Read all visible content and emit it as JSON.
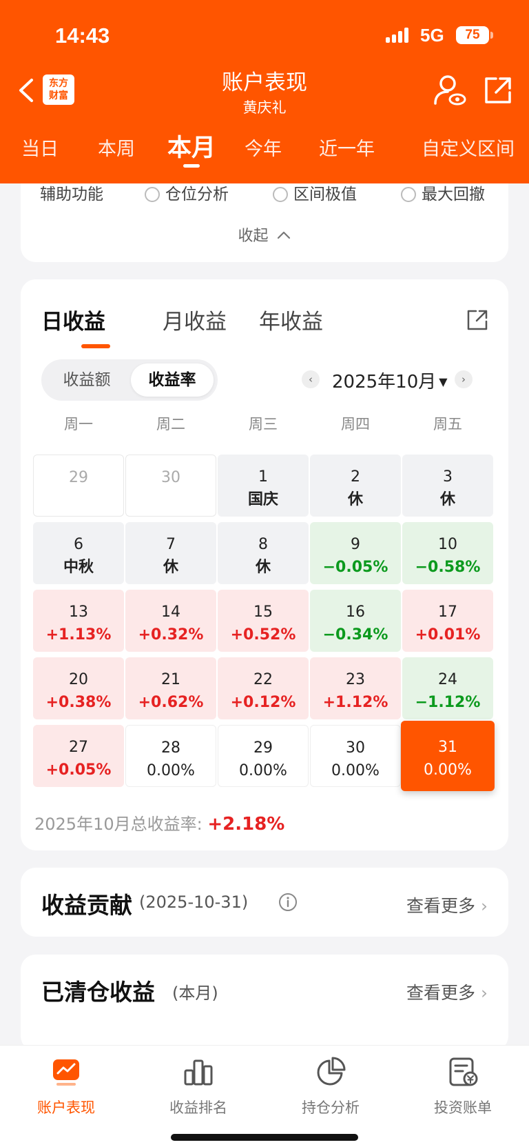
{
  "status": {
    "time": "14:43",
    "network": "5G",
    "battery": "75"
  },
  "header": {
    "logo_line1": "东方",
    "logo_line2": "财富",
    "title": "账户表现",
    "subtitle": "黄庆礼",
    "tabs": [
      "当日",
      "本周",
      "本月",
      "今年",
      "近一年",
      "自定义区间"
    ],
    "active_tab": "本月"
  },
  "assist": {
    "label": "辅助功能",
    "options": [
      "仓位分析",
      "区间极值",
      "最大回撤"
    ],
    "collapse_label": "收起"
  },
  "returns": {
    "tabs": [
      "日收益",
      "月收益",
      "年收益"
    ],
    "active_tab": "日收益",
    "toggle": [
      "收益额",
      "收益率"
    ],
    "toggle_active": "收益率",
    "month": "2025年10月",
    "weekdays": [
      "周一",
      "周二",
      "周三",
      "周四",
      "周五"
    ],
    "weeks": [
      [
        {
          "day": "29",
          "value": "",
          "type": "empty"
        },
        {
          "day": "30",
          "value": "",
          "type": "empty"
        },
        {
          "day": "1",
          "value": "国庆",
          "type": "holiday"
        },
        {
          "day": "2",
          "value": "休",
          "type": "holiday"
        },
        {
          "day": "3",
          "value": "休",
          "type": "holiday"
        }
      ],
      [
        {
          "day": "6",
          "value": "中秋",
          "type": "holiday"
        },
        {
          "day": "7",
          "value": "休",
          "type": "holiday"
        },
        {
          "day": "8",
          "value": "休",
          "type": "holiday"
        },
        {
          "day": "9",
          "value": "−0.05%",
          "type": "green"
        },
        {
          "day": "10",
          "value": "−0.58%",
          "type": "green"
        }
      ],
      [
        {
          "day": "13",
          "value": "+1.13%",
          "type": "red"
        },
        {
          "day": "14",
          "value": "+0.32%",
          "type": "red"
        },
        {
          "day": "15",
          "value": "+0.52%",
          "type": "red"
        },
        {
          "day": "16",
          "value": "−0.34%",
          "type": "green"
        },
        {
          "day": "17",
          "value": "+0.01%",
          "type": "red"
        }
      ],
      [
        {
          "day": "20",
          "value": "+0.38%",
          "type": "red"
        },
        {
          "day": "21",
          "value": "+0.62%",
          "type": "red"
        },
        {
          "day": "22",
          "value": "+0.12%",
          "type": "red"
        },
        {
          "day": "23",
          "value": "+1.12%",
          "type": "red"
        },
        {
          "day": "24",
          "value": "−1.12%",
          "type": "green"
        }
      ],
      [
        {
          "day": "27",
          "value": "+0.05%",
          "type": "red"
        },
        {
          "day": "28",
          "value": "0.00%",
          "type": "zero"
        },
        {
          "day": "29",
          "value": "0.00%",
          "type": "zero"
        },
        {
          "day": "30",
          "value": "0.00%",
          "type": "zero"
        },
        {
          "day": "31",
          "value": "0.00%",
          "type": "selected"
        }
      ]
    ],
    "total_label": "2025年10月总收益率:",
    "total_value": "+2.18%"
  },
  "contribution": {
    "title": "收益贡献",
    "date": "(2025-10-31)",
    "more": "查看更多"
  },
  "cleared": {
    "title": "已清仓收益",
    "period": "(本月)",
    "more": "查看更多"
  },
  "bottom_nav": {
    "items": [
      "账户表现",
      "收益排名",
      "持仓分析",
      "投资账单"
    ],
    "active": "账户表现"
  },
  "colors": {
    "brand": "#ff5500",
    "gain": "#e62222",
    "loss": "#0c9a1e"
  }
}
